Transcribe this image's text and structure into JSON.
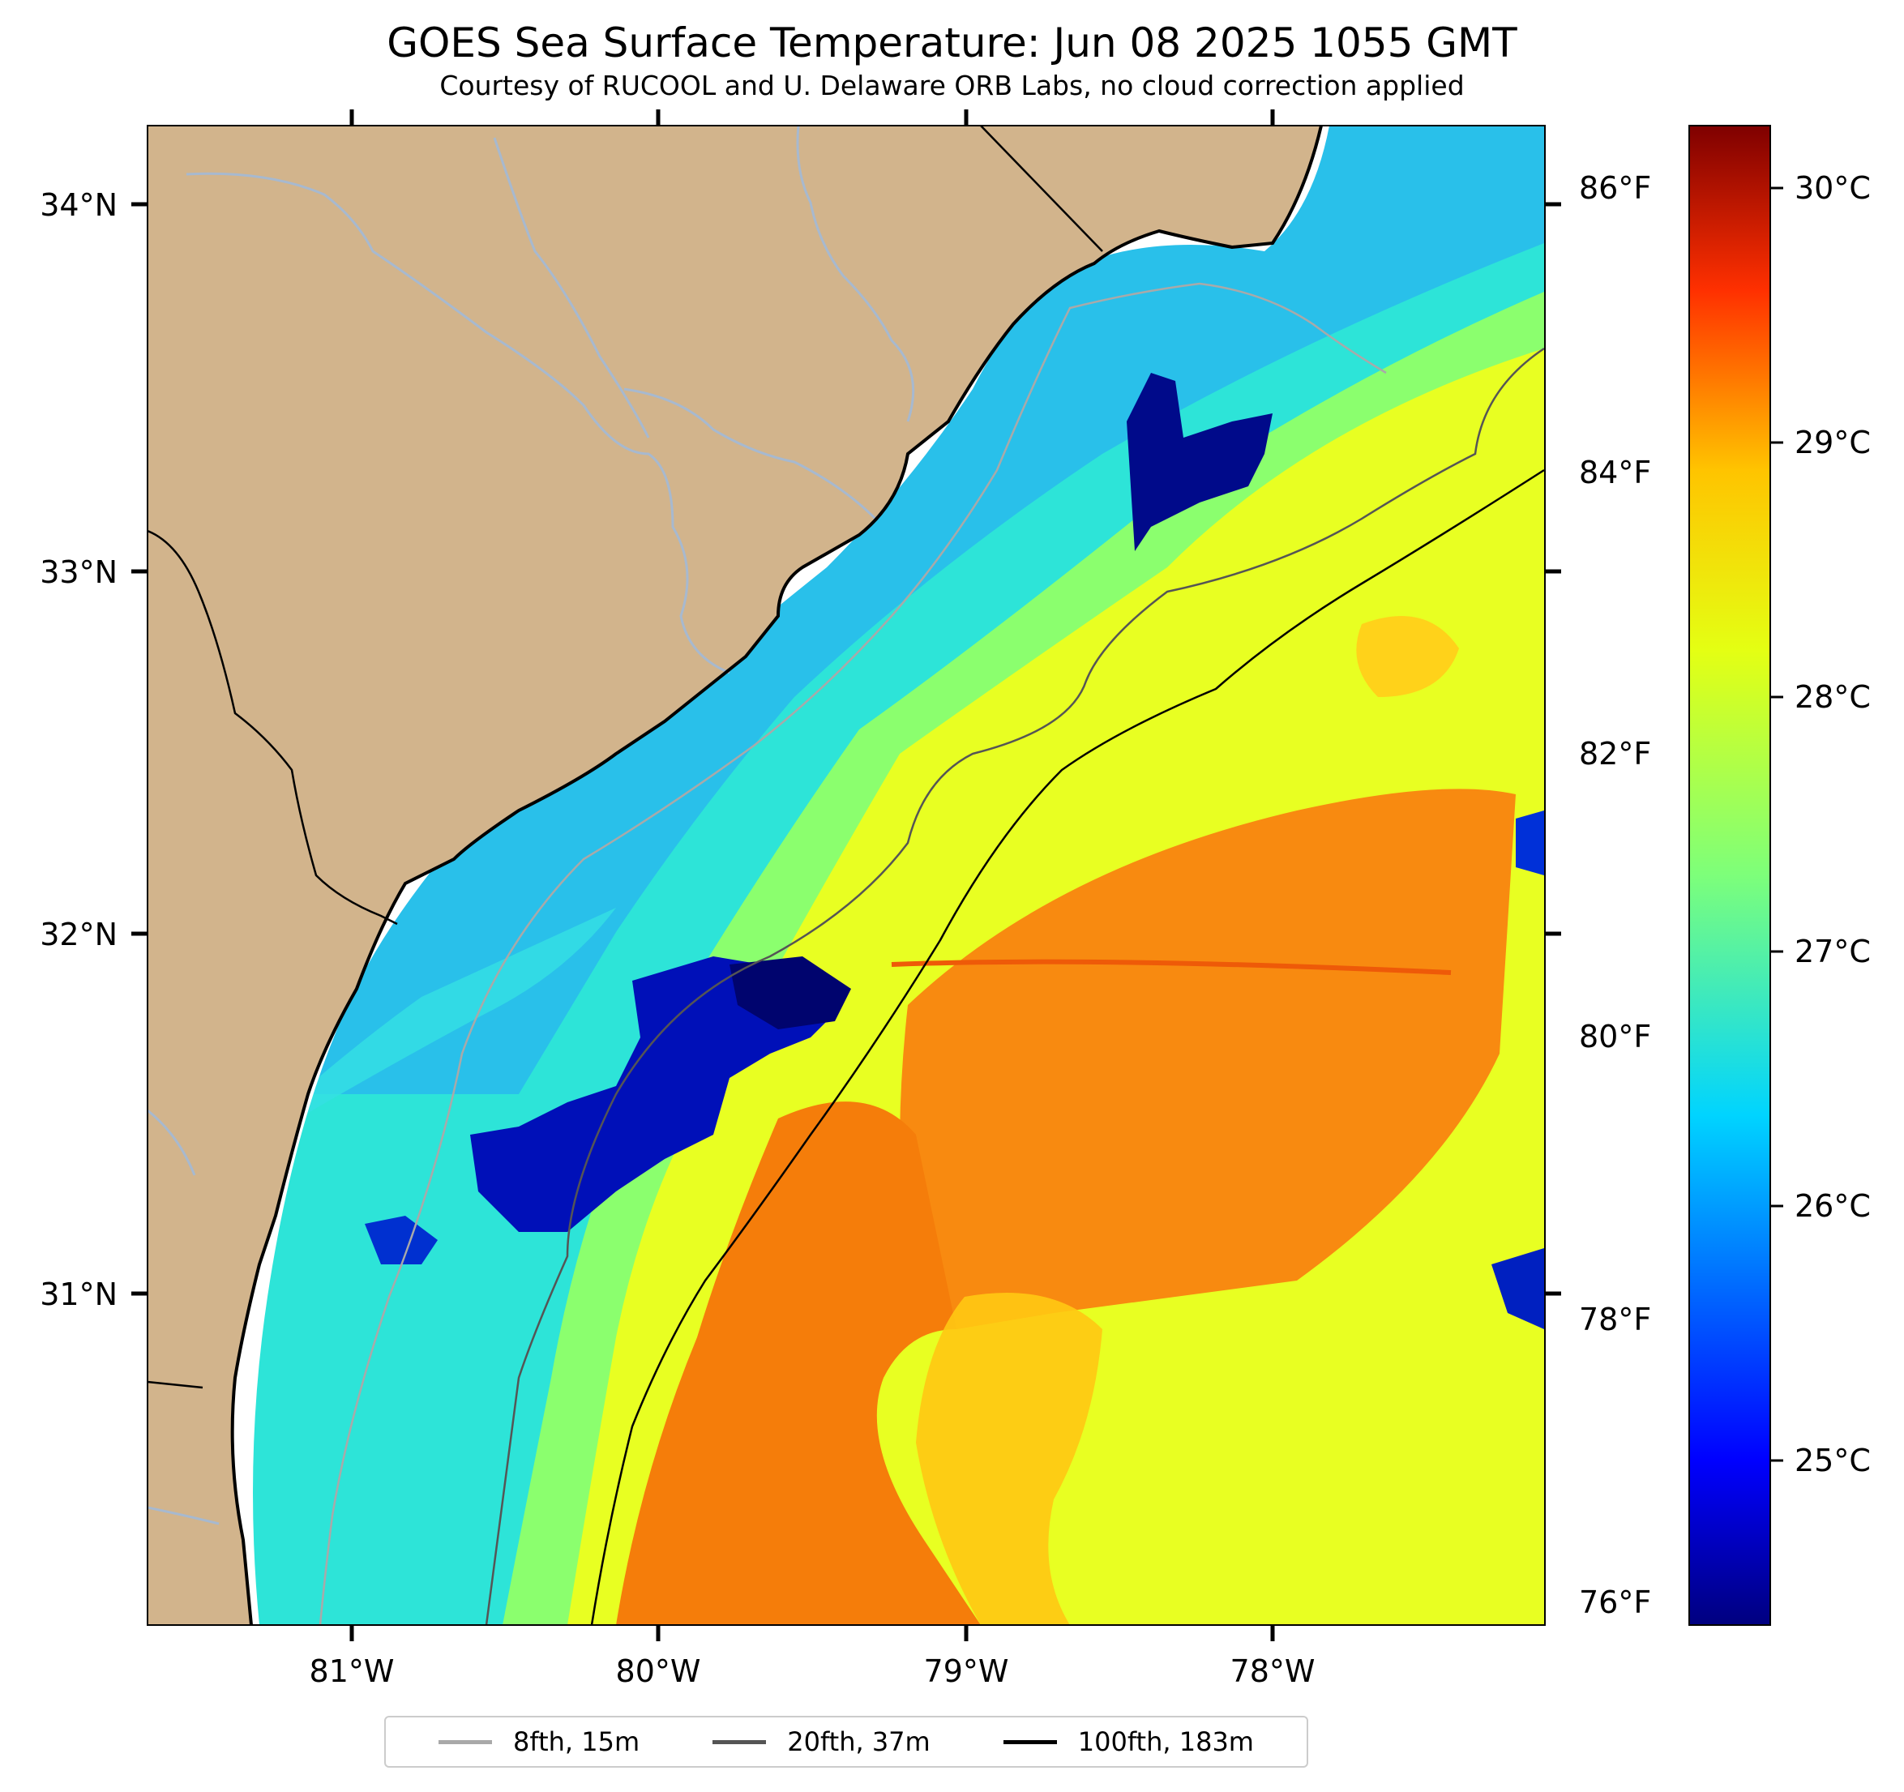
{
  "title": "GOES Sea Surface Temperature: Jun 08 2025 1055 GMT",
  "subtitle": "Courtesy of RUCOOL and U. Delaware ORB Labs, no cloud correction applied",
  "map": {
    "region": "South Carolina / Georgia coast, South Atlantic Bight",
    "land_color": "#d2b48c",
    "river_color": "#a7b9cf",
    "lon_range": [
      -81.67,
      -77.12
    ],
    "lat_range": [
      30.12,
      34.22
    ],
    "lat_ticks": [
      "34°N",
      "33°N",
      "32°N",
      "31°N"
    ],
    "lon_ticks": [
      "81°W",
      "80°W",
      "79°W",
      "78°W"
    ]
  },
  "chart_data": {
    "type": "heatmap",
    "title": "GOES Sea Surface Temperature: Jun 08 2025 1055 GMT",
    "colormap": "jet",
    "celsius_range": [
      24.4,
      30.3
    ],
    "fahrenheit_ticks": [
      "86°F",
      "84°F",
      "82°F",
      "80°F",
      "78°F",
      "76°F"
    ],
    "fahrenheit_values": [
      86,
      84,
      82,
      80,
      78,
      76
    ],
    "colorbar_ticks": [
      "30°C",
      "29°C",
      "28°C",
      "27°C",
      "26°C",
      "25°C"
    ],
    "colorbar_values": [
      30,
      29,
      28,
      27,
      26,
      25
    ]
  },
  "legend": {
    "placement": "bottom-center",
    "items": [
      {
        "label": "8fth, 15m",
        "color": "#a9a9a9"
      },
      {
        "label": "20fth, 37m",
        "color": "#555555"
      },
      {
        "label": "100fth, 183m",
        "color": "#000000"
      }
    ]
  }
}
